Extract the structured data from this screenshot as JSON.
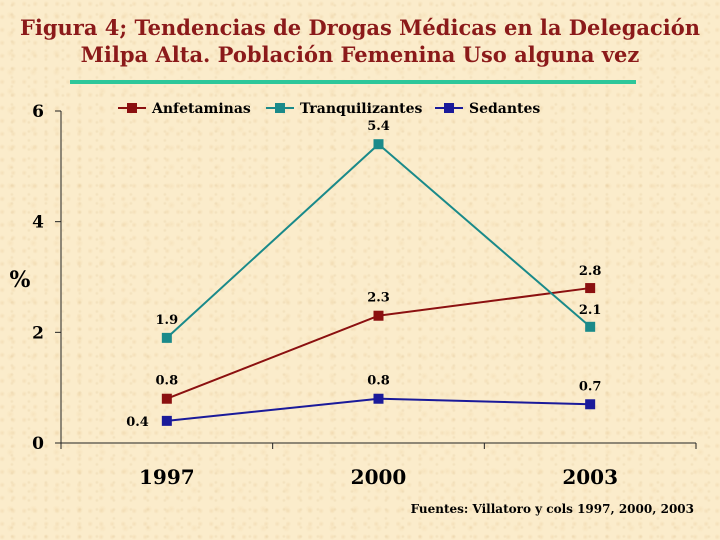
{
  "title_line1": "Figura 4; Tendencias de Drogas Médicas en  la Delegación",
  "title_line2": "Milpa Alta. Población Femenina Uso alguna vez",
  "source": "Fuentes: Villatoro y cols 1997, 2000, 2003",
  "colors": {
    "title": "#8b1a1a",
    "rule": "#2ec79a",
    "anfetaminas": "#8b1010",
    "tranquilizantes": "#1a8a8a",
    "sedantes": "#1a1a9a"
  },
  "chart_data": {
    "type": "line",
    "title": "Figura 4; Tendencias de Drogas Médicas en  la Delegación Milpa Alta. Población Femenina Uso alguna vez",
    "xlabel": "",
    "ylabel": "%",
    "categories": [
      "1997",
      "2000",
      "2003"
    ],
    "ylim": [
      0,
      6
    ],
    "yticks": [
      "0",
      "2",
      "4",
      "6"
    ],
    "grid": false,
    "legend_position": "top",
    "series": [
      {
        "name": "Anfetaminas",
        "values": [
          0.8,
          2.3,
          2.8
        ],
        "labels": [
          "0.8",
          "2.3",
          "2.8"
        ]
      },
      {
        "name": "Tranquilizantes",
        "values": [
          1.9,
          5.4,
          2.1
        ],
        "labels": [
          "1.9",
          "5.4",
          "2.1"
        ]
      },
      {
        "name": "Sedantes",
        "values": [
          0.4,
          0.8,
          0.7
        ],
        "labels": [
          "0.4",
          "0.8",
          "0.7"
        ]
      }
    ]
  }
}
